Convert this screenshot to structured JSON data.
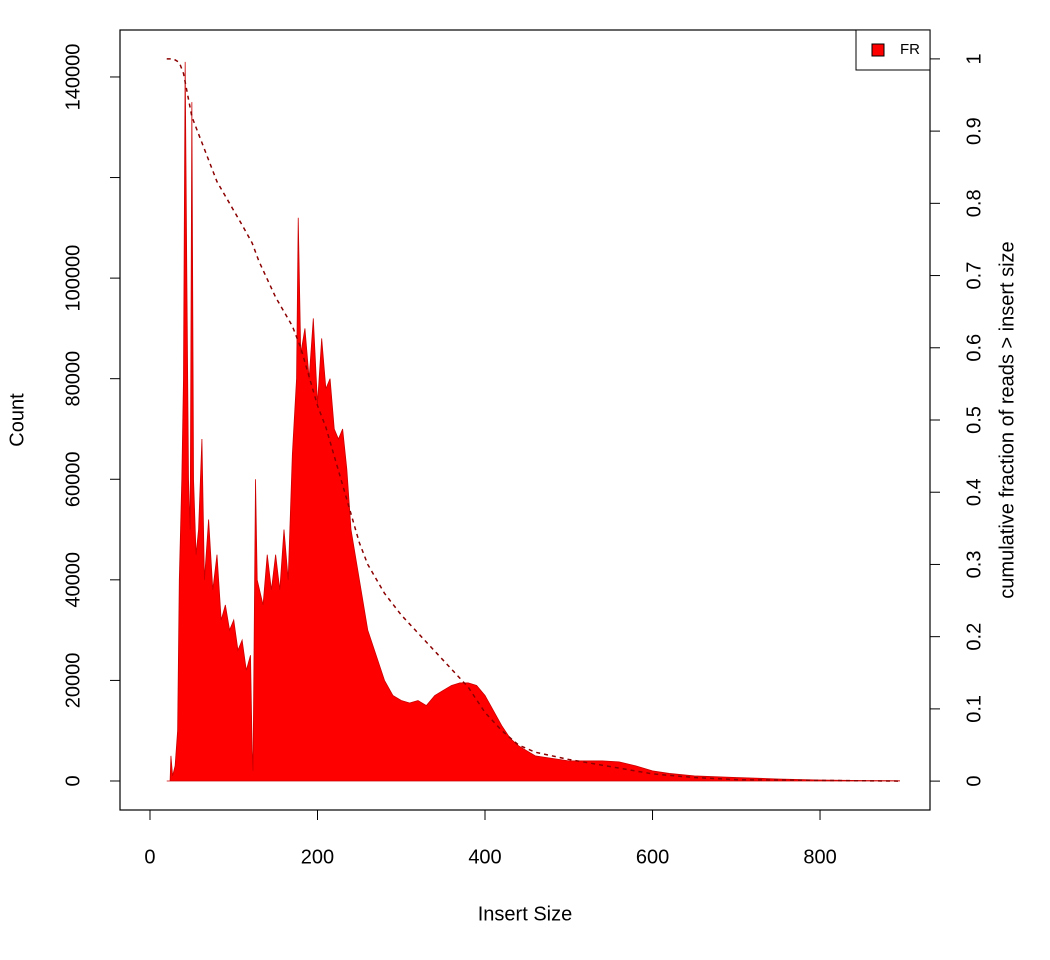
{
  "chart_data": {
    "type": "area",
    "xlabel": "Insert Size",
    "ylabel": "Count",
    "y2label": "cumulative fraction of reads > insert size",
    "xlim": [
      -35.8,
      931.3
    ],
    "xticks": [
      0,
      200,
      400,
      600,
      800
    ],
    "ylim": [
      -5770,
      149340
    ],
    "yticks": [
      0,
      20000,
      40000,
      60000,
      80000,
      100000,
      {
        "value": 120000,
        "label": null
      },
      140000
    ],
    "y2lim": [
      -0.04,
      1.04
    ],
    "y2ticks": [
      0,
      0.1,
      0.2,
      0.3,
      0.4,
      0.5,
      0.6,
      0.7,
      0.8,
      0.9,
      1
    ],
    "legend_position": "top-right",
    "series": [
      {
        "name": "FR",
        "color": "#ff0000",
        "x": [
          20,
          24,
          25,
          27,
          30,
          33,
          35,
          38,
          40,
          42,
          44,
          46,
          48,
          50,
          52,
          55,
          58,
          62,
          65,
          70,
          75,
          80,
          85,
          90,
          95,
          100,
          105,
          110,
          115,
          120,
          122,
          123,
          126,
          128,
          135,
          140,
          145,
          150,
          155,
          160,
          165,
          170,
          175,
          177,
          180,
          185,
          190,
          195,
          200,
          205,
          210,
          215,
          220,
          225,
          230,
          235,
          240,
          250,
          260,
          270,
          280,
          290,
          300,
          310,
          320,
          330,
          340,
          350,
          360,
          370,
          380,
          390,
          400,
          410,
          420,
          430,
          440,
          450,
          460,
          480,
          500,
          520,
          540,
          560,
          580,
          600,
          620,
          650,
          700,
          750,
          800,
          850,
          895
        ],
        "values": [
          0,
          0,
          5000,
          1000,
          3000,
          10000,
          40000,
          60000,
          80000,
          143000,
          100000,
          60000,
          50000,
          135000,
          60000,
          45000,
          50000,
          68000,
          40000,
          52000,
          38000,
          45000,
          32000,
          35000,
          30000,
          32000,
          26000,
          28000,
          22000,
          25000,
          6000,
          2000,
          60000,
          40000,
          35000,
          45000,
          38000,
          45000,
          38000,
          50000,
          40000,
          65000,
          80000,
          112000,
          85000,
          90000,
          80000,
          92000,
          75000,
          88000,
          78000,
          80000,
          70000,
          68000,
          70000,
          62000,
          50000,
          40000,
          30000,
          25000,
          20000,
          17000,
          16000,
          15500,
          16000,
          15000,
          17000,
          18000,
          19000,
          19500,
          19500,
          19000,
          17000,
          14000,
          11000,
          8500,
          7000,
          6000,
          5000,
          4500,
          4000,
          4000,
          4000,
          3800,
          3000,
          2000,
          1500,
          1000,
          700,
          400,
          200,
          100,
          50
        ]
      },
      {
        "color": "#8b0000",
        "axis": "y2",
        "dashed": true,
        "x": [
          20,
          28,
          35,
          40,
          45,
          50,
          60,
          70,
          80,
          90,
          100,
          110,
          122,
          130,
          150,
          170,
          180,
          190,
          200,
          210,
          220,
          230,
          240,
          250,
          260,
          280,
          300,
          320,
          340,
          360,
          380,
          400,
          420,
          440,
          460,
          500,
          550,
          600,
          650,
          700,
          800,
          895
        ],
        "values": [
          1.0,
          1.0,
          0.995,
          0.98,
          0.95,
          0.92,
          0.89,
          0.86,
          0.83,
          0.81,
          0.79,
          0.77,
          0.745,
          0.72,
          0.67,
          0.63,
          0.6,
          0.56,
          0.52,
          0.49,
          0.45,
          0.41,
          0.37,
          0.33,
          0.3,
          0.26,
          0.23,
          0.205,
          0.18,
          0.155,
          0.13,
          0.095,
          0.07,
          0.05,
          0.04,
          0.03,
          0.02,
          0.01,
          0.005,
          0.002,
          0.001,
          0
        ]
      }
    ]
  }
}
